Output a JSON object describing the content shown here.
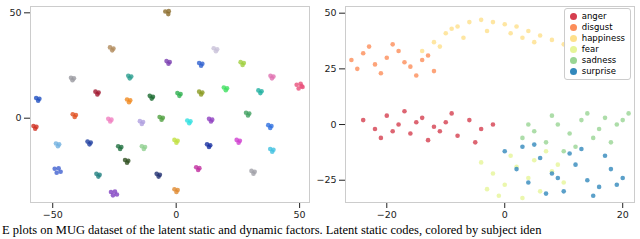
{
  "caption": "E plots on MUG dataset of the latent static and dynamic factors. Latent static codes, colored by subject iden",
  "chart_data": [
    {
      "type": "scatter",
      "xlim": [
        -59,
        54
      ],
      "ylim": [
        -40,
        53
      ],
      "xticks": [
        -50,
        0,
        50
      ],
      "yticks": [
        0,
        50
      ],
      "series": [
        {
          "color": "#8b6b2a",
          "x": [
            -4.4,
            -3.2,
            -3.0
          ],
          "y": [
            50.6,
            49.4,
            50.8
          ]
        },
        {
          "color": "#b08a5a",
          "x": [
            -26.8,
            -25.4,
            -25.9
          ],
          "y": [
            33.6,
            33.1,
            32.2
          ]
        },
        {
          "color": "#c8c0d8",
          "x": [
            15.2,
            16.6,
            16.1
          ],
          "y": [
            33.2,
            32.7,
            31.8
          ]
        },
        {
          "color": "#9a9aa0",
          "x": [
            -42.6,
            -41.4,
            -42.0
          ],
          "y": [
            19.2,
            18.9,
            18.0
          ]
        },
        {
          "color": "#2a9d8f",
          "x": [
            -19.4,
            -18.2,
            -18.8
          ],
          "y": [
            20.1,
            19.8,
            18.9
          ]
        },
        {
          "color": "#7b3fb0",
          "x": [
            -3.9,
            -2.6,
            -3.1
          ],
          "y": [
            27.1,
            26.7,
            25.8
          ]
        },
        {
          "color": "#3060d0",
          "x": [
            9.3,
            10.6,
            10.1
          ],
          "y": [
            26.2,
            25.8,
            24.9
          ]
        },
        {
          "color": "#a0d040",
          "x": [
            26.1,
            27.4,
            26.9
          ],
          "y": [
            26.6,
            26.2,
            25.3
          ]
        },
        {
          "color": "#e070b0",
          "x": [
            38.2,
            39.4,
            38.8
          ],
          "y": [
            20.1,
            19.8,
            18.9
          ]
        },
        {
          "color": "#e8507a",
          "x": [
            48.8,
            50.4,
            51.2,
            49.6,
            50.8
          ],
          "y": [
            15.9,
            16.3,
            14.8,
            14.1,
            15.2
          ]
        },
        {
          "color": "#a01830",
          "x": [
            -32.7,
            -31.4,
            -31.9
          ],
          "y": [
            12.6,
            12.2,
            11.3
          ]
        },
        {
          "color": "#f08a20",
          "x": [
            -19.9,
            -18.6,
            -19.1
          ],
          "y": [
            8.9,
            8.5,
            7.6
          ]
        },
        {
          "color": "#1a6a30",
          "x": [
            -10.7,
            -9.4,
            -9.9
          ],
          "y": [
            10.6,
            10.2,
            9.3
          ]
        },
        {
          "color": "#30b050",
          "x": [
            0.5,
            1.8,
            1.3
          ],
          "y": [
            11.9,
            11.5,
            10.6
          ]
        },
        {
          "color": "#8a9a20",
          "x": [
            9.3,
            10.6,
            10.1
          ],
          "y": [
            12.6,
            12.2,
            11.3
          ]
        },
        {
          "color": "#40e060",
          "x": [
            19.3,
            20.6,
            20.1
          ],
          "y": [
            14.6,
            14.2,
            13.3
          ]
        },
        {
          "color": "#20b0a0",
          "x": [
            33.3,
            34.6,
            34.1
          ],
          "y": [
            13.2,
            12.8,
            11.9
          ]
        },
        {
          "color": "#2050c0",
          "x": [
            -56.7,
            -55.4,
            -55.9
          ],
          "y": [
            9.6,
            9.2,
            8.3
          ]
        },
        {
          "color": "#d03020",
          "x": [
            -57.8,
            -56.6,
            -57.1
          ],
          "y": [
            -3.7,
            -4.1,
            -5.0
          ]
        },
        {
          "color": "#e05020",
          "x": [
            -41.9,
            -40.6,
            -41.1
          ],
          "y": [
            1.9,
            1.5,
            0.6
          ]
        },
        {
          "color": "#f080c0",
          "x": [
            -27.5,
            -26.2,
            -26.7
          ],
          "y": [
            -0.3,
            -0.7,
            -1.6
          ]
        },
        {
          "color": "#b0a0e0",
          "x": [
            -14.7,
            -13.4,
            -13.9
          ],
          "y": [
            -1.4,
            -1.8,
            -2.7
          ]
        },
        {
          "color": "#50a040",
          "x": [
            -6.7,
            -5.4,
            -5.9
          ],
          "y": [
            0.6,
            0.2,
            -0.7
          ]
        },
        {
          "color": "#30e0e0",
          "x": [
            4.5,
            5.8,
            5.3
          ],
          "y": [
            -1.1,
            -1.5,
            -2.4
          ]
        },
        {
          "color": "#9040c0",
          "x": [
            13.3,
            14.6,
            14.1
          ],
          "y": [
            -0.3,
            -0.7,
            -1.6
          ]
        },
        {
          "color": "#40a060",
          "x": [
            28.3,
            29.6,
            29.1
          ],
          "y": [
            2.6,
            2.2,
            1.3
          ]
        },
        {
          "color": "#3070e0",
          "x": [
            37.3,
            38.6,
            38.1
          ],
          "y": [
            -3.3,
            -3.7,
            -4.6
          ]
        },
        {
          "color": "#70b0e0",
          "x": [
            -48.7,
            -47.4,
            -47.9
          ],
          "y": [
            -12.0,
            -12.4,
            -13.3
          ]
        },
        {
          "color": "#2040a0",
          "x": [
            -35.9,
            -34.6,
            -35.1
          ],
          "y": [
            -11.1,
            -11.5,
            -12.4
          ]
        },
        {
          "color": "#207040",
          "x": [
            -23.5,
            -22.2,
            -22.7
          ],
          "y": [
            -13.3,
            -13.7,
            -14.6
          ]
        },
        {
          "color": "#90d090",
          "x": [
            -13.9,
            -12.6,
            -13.1
          ],
          "y": [
            -13.3,
            -13.7,
            -14.6
          ]
        },
        {
          "color": "#c0e040",
          "x": [
            -0.7,
            0.6,
            0.1
          ],
          "y": [
            -10.3,
            -10.7,
            -11.6
          ]
        },
        {
          "color": "#1830a0",
          "x": [
            12.5,
            13.8,
            13.3
          ],
          "y": [
            -12.4,
            -12.8,
            -13.7
          ]
        },
        {
          "color": "#d040d0",
          "x": [
            24.5,
            25.8,
            25.3
          ],
          "y": [
            -10.3,
            -10.7,
            -11.6
          ]
        },
        {
          "color": "#40c0e0",
          "x": [
            38.1,
            39.4,
            38.9
          ],
          "y": [
            -14.6,
            -15.0,
            -15.9
          ]
        },
        {
          "color": "#4060d0",
          "x": [
            -49.2,
            -47.6,
            -46.8,
            -48.4
          ],
          "y": [
            -24.0,
            -23.8,
            -25.4,
            -25.9
          ]
        },
        {
          "color": "#208080",
          "x": [
            -32.3,
            -31.0,
            -31.5
          ],
          "y": [
            -26.4,
            -26.8,
            -27.7
          ]
        },
        {
          "color": "#305020",
          "x": [
            -20.7,
            -19.4,
            -19.9
          ],
          "y": [
            -19.8,
            -20.2,
            -21.1
          ]
        },
        {
          "color": "#203070",
          "x": [
            -7.9,
            -6.6,
            -7.1
          ],
          "y": [
            -26.4,
            -26.8,
            -27.7
          ]
        },
        {
          "color": "#c030a0",
          "x": [
            8.1,
            9.4,
            8.9
          ],
          "y": [
            -23.3,
            -23.7,
            -24.6
          ]
        },
        {
          "color": "#a0a0a8",
          "x": [
            30.5,
            31.8,
            31.3
          ],
          "y": [
            -25.0,
            -25.4,
            -26.3
          ]
        },
        {
          "color": "#8040c0",
          "x": [
            -26.4,
            -24.8,
            -24.0,
            -25.6
          ],
          "y": [
            -35.0,
            -34.8,
            -36.2,
            -36.6
          ]
        },
        {
          "color": "#e08a30",
          "x": [
            -0.7,
            0.6,
            0.1
          ],
          "y": [
            -33.7,
            -34.1,
            -35.0
          ]
        }
      ]
    },
    {
      "type": "scatter",
      "xlim": [
        -27,
        22
      ],
      "ylim": [
        -35,
        53
      ],
      "xticks": [
        -20,
        0,
        20
      ],
      "yticks": [
        -25,
        0,
        25,
        50
      ],
      "legend": "upper right",
      "series": [
        {
          "name": "anger",
          "color": "#d53e4f",
          "x": [
            -24,
            -22,
            -20,
            -18,
            -16,
            -14,
            -12,
            -10,
            -8,
            -6,
            -4,
            -2,
            -21,
            -17,
            -13,
            -9,
            -5,
            -19,
            -11,
            -15
          ],
          "y": [
            2,
            -2,
            4,
            0,
            -4,
            3,
            -1,
            1,
            -5,
            2,
            -2,
            0,
            -6,
            6,
            -7,
            5,
            -8,
            -3,
            -3,
            1
          ]
        },
        {
          "name": "disgust",
          "color": "#fc8d59",
          "x": [
            -26,
            -24,
            -22,
            -20,
            -18,
            -16,
            -14,
            -12,
            -25,
            -21,
            -17,
            -13,
            -23,
            -19,
            -15
          ],
          "y": [
            29,
            32,
            27,
            30,
            33,
            26,
            29,
            24,
            25,
            23,
            28,
            31,
            35,
            36,
            22
          ]
        },
        {
          "name": "happiness",
          "color": "#fee08b",
          "x": [
            -14,
            -12,
            -10,
            -8,
            -6,
            -4,
            -2,
            0,
            2,
            4,
            6,
            8,
            10,
            -11,
            -7,
            -3,
            1,
            5,
            -9,
            3
          ],
          "y": [
            33,
            37,
            41,
            44,
            46,
            47,
            46,
            45,
            44,
            42,
            40,
            38,
            36,
            35,
            39,
            42,
            41,
            37,
            43,
            39
          ]
        },
        {
          "name": "fear",
          "color": "#e6f598",
          "x": [
            -4,
            -2,
            0,
            2,
            4,
            6,
            8,
            10,
            -3,
            1,
            5,
            9,
            -1,
            3,
            7
          ],
          "y": [
            -17,
            -22,
            -27,
            -19,
            -24,
            -30,
            -21,
            -26,
            -29,
            -14,
            -16,
            -18,
            -32,
            -33,
            -12
          ]
        },
        {
          "name": "sadness",
          "color": "#99d594",
          "x": [
            3,
            5,
            7,
            9,
            11,
            13,
            15,
            17,
            19,
            21,
            4,
            8,
            12,
            16,
            20,
            10,
            14,
            18
          ],
          "y": [
            -6,
            -3,
            -8,
            0,
            -4,
            2,
            -6,
            3,
            0,
            5,
            0,
            4,
            -10,
            -2,
            2,
            -12,
            5,
            -8
          ]
        },
        {
          "name": "surprise",
          "color": "#3288bc",
          "x": [
            0,
            2,
            4,
            6,
            8,
            10,
            12,
            14,
            16,
            18,
            20,
            3,
            7,
            11,
            15,
            19,
            5,
            13,
            9,
            17
          ],
          "y": [
            -12,
            -20,
            -26,
            -15,
            -22,
            -30,
            -18,
            -25,
            -28,
            -20,
            -24,
            -10,
            -31,
            -13,
            -32,
            -27,
            -9,
            -11,
            -24,
            -14
          ]
        }
      ]
    }
  ]
}
